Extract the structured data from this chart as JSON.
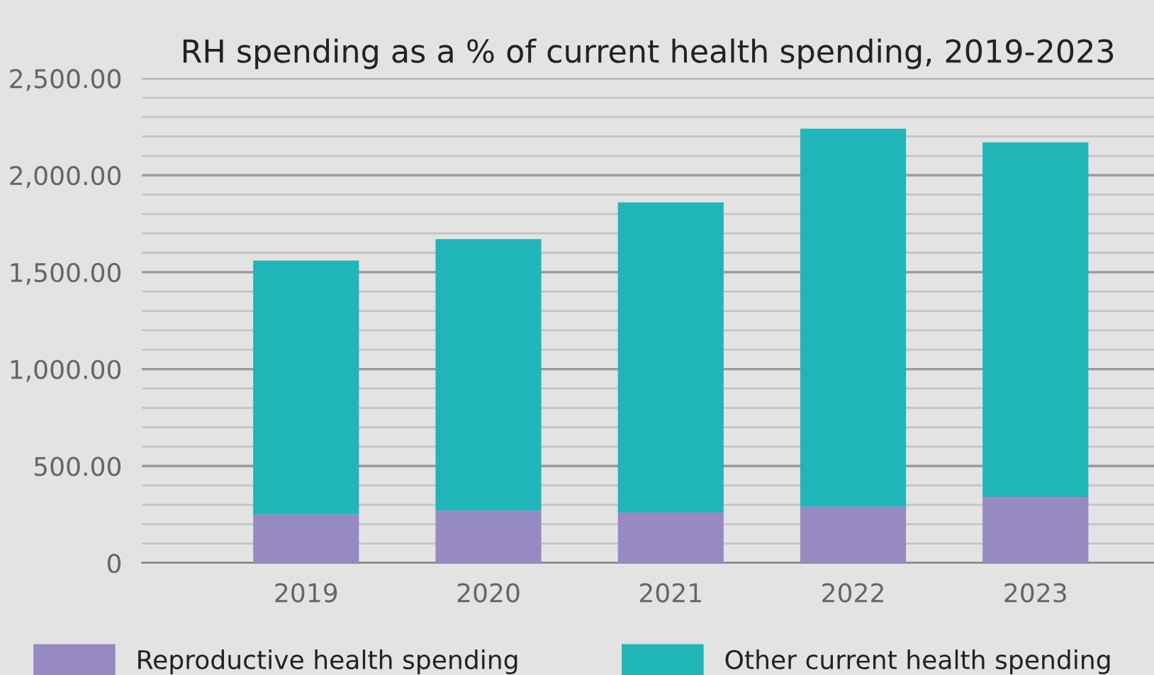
{
  "chart_data": {
    "type": "bar",
    "title": "RH spending as a % of current health spending, 2019-2023",
    "categories": [
      "2019",
      "2020",
      "2021",
      "2022",
      "2023"
    ],
    "stacked": true,
    "series": [
      {
        "name": "Reproductive health spending",
        "color": "#978ac3",
        "values": [
          250,
          270,
          260,
          290,
          340
        ]
      },
      {
        "name": "Other current health spending",
        "color": "#20b5b9",
        "values": [
          1310,
          1400,
          1600,
          1950,
          1830
        ]
      }
    ],
    "ylim": [
      0,
      2500
    ],
    "yticks": [
      0,
      {
        "value": 500,
        "label": "500.00"
      },
      {
        "value": 1000,
        "label": "1,000.00"
      },
      {
        "value": 1500,
        "label": "1,500.00"
      },
      {
        "value": 2000,
        "label": "2,000.00"
      },
      {
        "value": 2500,
        "label": "2,500.00"
      }
    ],
    "grid": "y",
    "legend": "bottom"
  }
}
